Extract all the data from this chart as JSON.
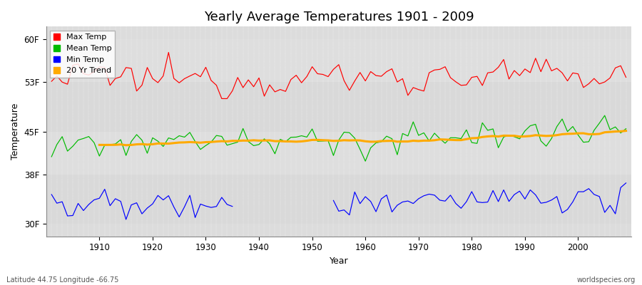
{
  "title": "Yearly Average Temperatures 1901 - 2009",
  "xlabel": "Year",
  "ylabel": "Temperature",
  "yticks": [
    30,
    38,
    45,
    53,
    60
  ],
  "ytick_labels": [
    "30F",
    "38F",
    "45F",
    "53F",
    "60F"
  ],
  "ylim": [
    28,
    62
  ],
  "xlim": [
    1901,
    2009
  ],
  "start_year": 1901,
  "end_year": 2009,
  "bg_color": "#dcdcdc",
  "fig_bg_color": "#ffffff",
  "max_temp_color": "#ff0000",
  "mean_temp_color": "#00bb00",
  "min_temp_color": "#0000ff",
  "trend_color": "#ffaa00",
  "legend_labels": [
    "Max Temp",
    "Mean Temp",
    "Min Temp",
    "20 Yr Trend"
  ],
  "footer_left": "Latitude 44.75 Longitude -66.75",
  "footer_right": "worldspecies.org",
  "max_temp_base": 53.5,
  "mean_temp_base": 43.0,
  "min_temp_base": 33.0,
  "seed": 12345
}
